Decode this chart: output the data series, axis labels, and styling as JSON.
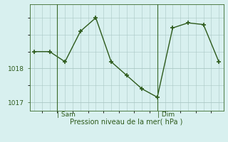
{
  "x": [
    0,
    1,
    2,
    3,
    4,
    5,
    6,
    7,
    8,
    9,
    10,
    11,
    12
  ],
  "y": [
    1018.5,
    1018.5,
    1018.2,
    1019.1,
    1019.5,
    1018.2,
    1017.8,
    1017.4,
    1017.15,
    1019.2,
    1019.35,
    1019.3,
    1018.2
  ],
  "line_color": "#2d5a1b",
  "marker_color": "#2d5a1b",
  "bg_color": "#d8f0ef",
  "grid_color": "#aac8c4",
  "xlabel": "Pression niveau de la mer( hPa )",
  "xlabel_color": "#2d5a1b",
  "tick_color": "#2d5a1b",
  "ylim": [
    1016.75,
    1019.9
  ],
  "xlim": [
    -0.3,
    12.3
  ],
  "sam_x": 1.5,
  "dim_x": 8.0,
  "vline_color": "#3a6a2a",
  "day_label_color": "#2d5a1b",
  "figsize": [
    3.2,
    2.0
  ],
  "dpi": 100
}
